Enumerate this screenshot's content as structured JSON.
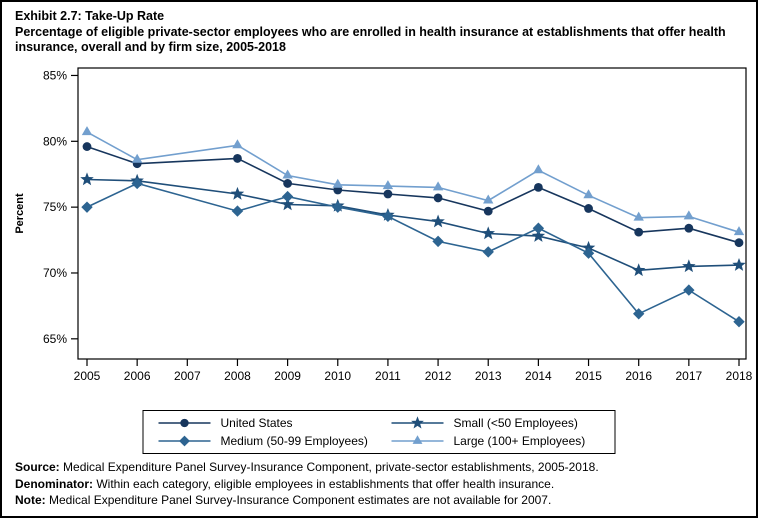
{
  "page": {
    "title_line1": "Exhibit 2.7: Take-Up Rate",
    "title_line2": "Percentage of eligible private-sector employees who are enrolled in health insurance at establishments that offer health insurance, overall and by firm size, 2005-2018"
  },
  "chart_data": {
    "type": "line",
    "title": "Exhibit 2.7: Take-Up Rate",
    "xlabel": "",
    "ylabel": "Percent",
    "ylim": [
      63.5,
      86
    ],
    "yticks": [
      65,
      70,
      75,
      80,
      85
    ],
    "ytick_labels": [
      "65%",
      "70%",
      "75%",
      "80%",
      "85%"
    ],
    "categories": [
      2005,
      2006,
      2007,
      2008,
      2009,
      2010,
      2011,
      2012,
      2013,
      2014,
      2015,
      2016,
      2017,
      2018
    ],
    "grid": false,
    "legend_position": "bottom",
    "missing_years": [
      2007
    ],
    "series": [
      {
        "name": "United States",
        "marker": "circle",
        "color": "#17365d",
        "values": [
          79.6,
          78.3,
          null,
          78.7,
          76.8,
          76.3,
          76.0,
          75.7,
          74.7,
          76.5,
          74.9,
          73.1,
          73.4,
          72.3
        ]
      },
      {
        "name": "Small (<50 Employees)",
        "marker": "star",
        "color": "#1f4e79",
        "values": [
          77.1,
          77.0,
          null,
          76.0,
          75.2,
          75.1,
          74.4,
          73.9,
          73.0,
          72.8,
          71.9,
          70.2,
          70.5,
          70.6
        ]
      },
      {
        "name": "Medium (50-99 Employees)",
        "marker": "diamond",
        "color": "#2d6491",
        "values": [
          75.0,
          76.8,
          null,
          74.7,
          75.8,
          75.0,
          74.3,
          72.4,
          71.6,
          73.4,
          71.5,
          66.9,
          68.7,
          66.3
        ]
      },
      {
        "name": "Large (100+ Employees)",
        "marker": "triangle",
        "color": "#729fce",
        "values": [
          80.7,
          78.6,
          null,
          79.7,
          77.4,
          76.7,
          76.6,
          76.5,
          75.5,
          77.8,
          75.9,
          74.2,
          74.3,
          73.1
        ]
      }
    ]
  },
  "footnotes": [
    {
      "label": "Source:",
      "text": "Medical Expenditure Panel Survey-Insurance Component, private-sector establishments, 2005-2018."
    },
    {
      "label": "Denominator:",
      "text": "Within each category, eligible employees in establishments that offer health insurance."
    },
    {
      "label": "Note:",
      "text": "Medical Expenditure Panel Survey-Insurance Component estimates are not available for 2007."
    }
  ]
}
